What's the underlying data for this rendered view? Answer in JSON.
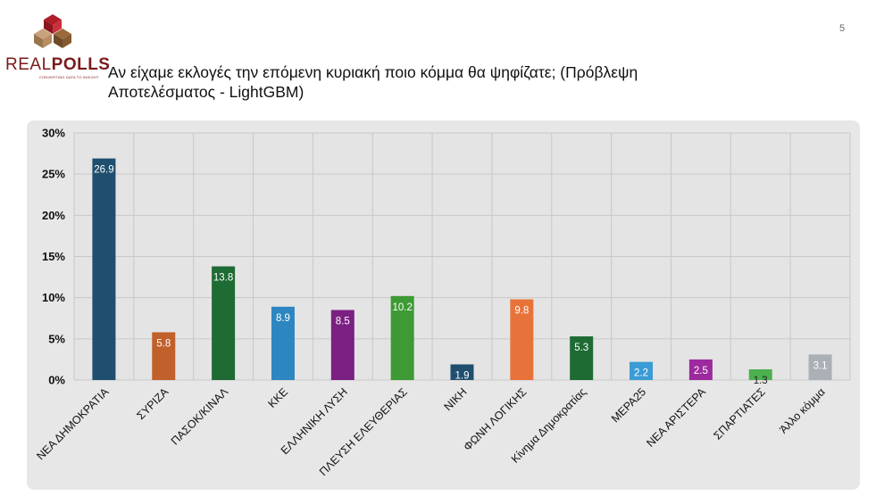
{
  "header": {
    "page_number": "5",
    "title_line1": "Αν είχαμε εκλογές την επόμενη κυριακή ποιο κόμμα θα ψηφίζατε; (Πρόβλεψη",
    "title_line2": "Αποτελέσματος - LightGBM)"
  },
  "logo": {
    "brand_real": "REAL",
    "brand_polls": "POLLS",
    "tagline": "CONVERTING DATA TO INSIGHT"
  },
  "chart_data": {
    "type": "bar",
    "title": "",
    "xlabel": "",
    "ylabel": "",
    "ylim": [
      0,
      30
    ],
    "yticks": [
      "0%",
      "5%",
      "10%",
      "15%",
      "20%",
      "25%",
      "30%"
    ],
    "grid": true,
    "categories": [
      "ΝΕΑ ΔΗΜΟΚΡΑΤΙΑ",
      "ΣΥΡΙΖΑ",
      "ΠΑΣΟΚ/ΚΙΝΑΛ",
      "ΚΚΕ",
      "ΕΛΛΗΝΙΚΗ ΛΥΣΗ",
      "ΠΛΕΥΣΗ ΕΛΕΥΘΕΡΙΑΣ",
      "ΝΙΚΗ",
      "ΦΩΝΗ ΛΟΓΙΚΗΣ",
      "Κίνημα Δημοκρατίας",
      "ΜΕΡΑ25",
      "ΝΕΑ ΑΡΙΣΤΕΡΑ",
      "ΣΠΑΡΤΙΑΤΕΣ",
      "Άλλο κόμμα"
    ],
    "values": [
      26.9,
      5.8,
      13.8,
      8.9,
      8.5,
      10.2,
      1.9,
      9.8,
      5.3,
      2.2,
      2.5,
      1.3,
      3.1
    ],
    "labels": [
      "26.9",
      "5.8",
      "13.8",
      "8.9",
      "8.5",
      "10.2",
      "1.9",
      "9.8",
      "5.3",
      "2.2",
      "2.5",
      "1.3",
      "3.1"
    ],
    "colors": [
      "#1f4e6e",
      "#c0602a",
      "#1e6b34",
      "#2e86c1",
      "#7b1f82",
      "#3e9a34",
      "#1f4e6e",
      "#e8733a",
      "#1e6b34",
      "#3a9bd5",
      "#9c2a9e",
      "#4caf50",
      "#aab0b6"
    ],
    "label_colors": [
      "#ffffff",
      "#ffffff",
      "#ffffff",
      "#ffffff",
      "#ffffff",
      "#ffffff",
      "#ffffff",
      "#ffffff",
      "#ffffff",
      "#ffffff",
      "#ffffff",
      "#222222",
      "#ffffff"
    ]
  }
}
